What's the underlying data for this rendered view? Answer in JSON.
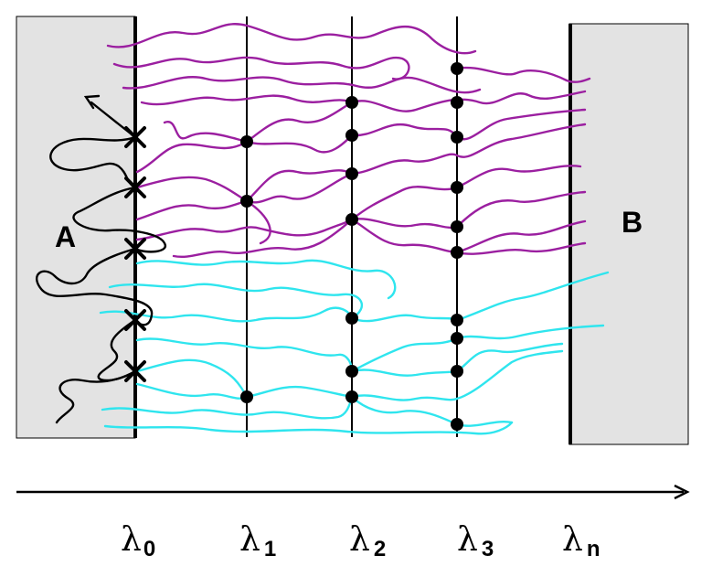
{
  "regions": {
    "a": {
      "label": "A"
    },
    "b": {
      "label": "B"
    }
  },
  "interfaces": [
    {
      "symbol": "λ",
      "subscript": "0"
    },
    {
      "symbol": "λ",
      "subscript": "1"
    },
    {
      "symbol": "λ",
      "subscript": "2"
    },
    {
      "symbol": "λ",
      "subscript": "3"
    },
    {
      "symbol": "λ",
      "subscript": "n"
    }
  ],
  "colors": {
    "region_fill": "#e3e3e3",
    "purple_paths": "#9b1fa0",
    "cyan_paths": "#2fe5ee",
    "black_paths": "#000000"
  }
}
